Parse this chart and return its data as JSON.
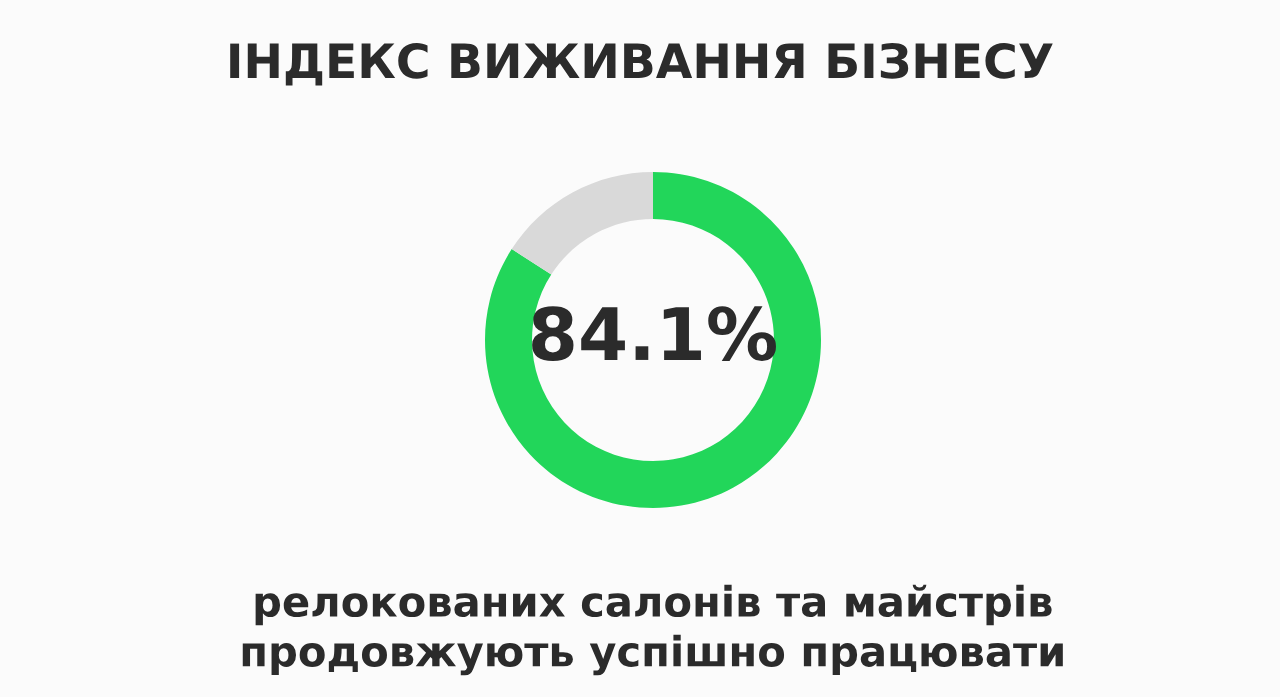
{
  "chart_data": {
    "type": "donut",
    "title": "ІНДЕКС ВИЖИВАННЯ БІЗНЕСУ",
    "categories": [
      null,
      null
    ],
    "values": [
      84.1,
      15.9
    ],
    "colors": [
      "#22d65a",
      "#d9d9d9"
    ],
    "value_labels": [
      "84.1%",
      null
    ],
    "annotations": [
      "релокованих салонів та майстрів\nпродовжують успішно працювати"
    ],
    "legend": false
  }
}
